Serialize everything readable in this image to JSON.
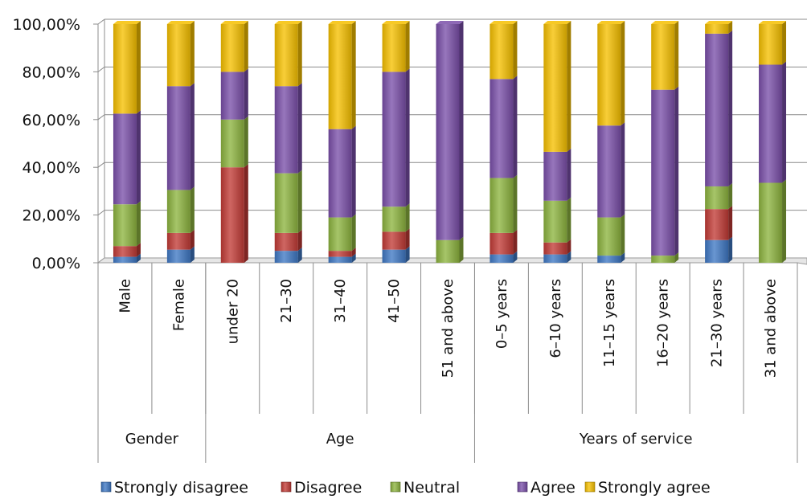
{
  "chart_data": {
    "type": "bar",
    "stacked": true,
    "percent": true,
    "ylim": [
      0,
      100
    ],
    "y_ticks": [
      "0,00%",
      "20,00%",
      "40,00%",
      "60,00%",
      "80,00%",
      "100,00%"
    ],
    "categories": [
      "Male",
      "Female",
      "under 20",
      "21–30",
      "31–40",
      "41–50",
      "51 and above",
      "0–5 years",
      "6–10 years",
      "11–15 years",
      "16–20 years",
      "21–30 years",
      "31 and above"
    ],
    "groups": [
      {
        "label": "Gender",
        "count": 2
      },
      {
        "label": "Age",
        "count": 5
      },
      {
        "label": "Years of service",
        "count": 6
      }
    ],
    "series": [
      {
        "name": "Strongly disagree",
        "color": "#3f78c4",
        "values": [
          2.5,
          5.5,
          0,
          5,
          2.5,
          5.5,
          0,
          3.5,
          3.5,
          3,
          0,
          9.5,
          0
        ]
      },
      {
        "name": "Disagree",
        "color": "#c23b36",
        "values": [
          4.5,
          7,
          40,
          7.5,
          2.5,
          7.5,
          0,
          9,
          5,
          0,
          0,
          13,
          0
        ]
      },
      {
        "name": "Neutral",
        "color": "#8db43f",
        "values": [
          17.5,
          18,
          20,
          25,
          14,
          10.5,
          9.5,
          23,
          17.5,
          16,
          3,
          9.5,
          33.5
        ]
      },
      {
        "name": "Agree",
        "color": "#7a4fa9",
        "values": [
          38,
          43.5,
          20,
          36.5,
          37,
          56.5,
          90.5,
          41.5,
          20.5,
          38.5,
          69.5,
          64,
          49.5
        ]
      },
      {
        "name": "Strongly agree",
        "color": "#f6c000",
        "values": [
          37.5,
          26,
          20,
          26,
          44,
          20,
          0,
          23,
          53.5,
          42.5,
          27.5,
          4,
          17
        ]
      }
    ],
    "grid": true,
    "legend": "bottom"
  }
}
